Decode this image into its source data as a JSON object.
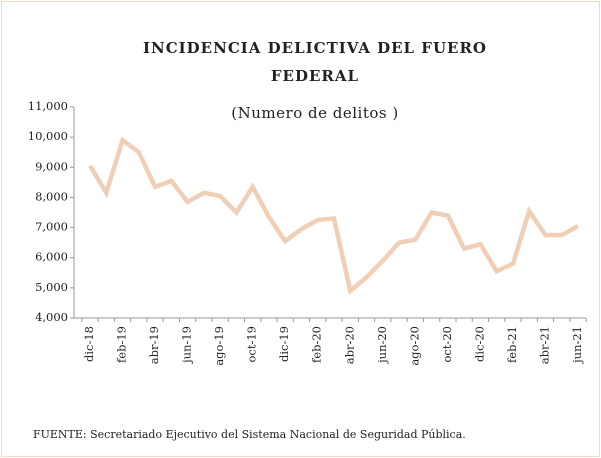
{
  "chart_data": {
    "type": "line",
    "title": "INCIDENCIA DELICTIVA DEL FUERO FEDERAL",
    "subtitle": "(Numero de delitos )",
    "source": "FUENTE: Secretariado Ejecutivo del Sistema Nacional de Seguridad Pública.",
    "categories": [
      "dic-18",
      null,
      "feb-19",
      null,
      "abr-19",
      null,
      "jun-19",
      null,
      "ago-19",
      null,
      "oct-19",
      null,
      "dic-19",
      null,
      "feb-20",
      null,
      "abr-20",
      null,
      "jun-20",
      null,
      "ago-20",
      null,
      "oct-20",
      null,
      "dic-20",
      null,
      "feb-21",
      null,
      "abr-21",
      null,
      "jun-21"
    ],
    "series": [
      {
        "name": "Incidencia delictiva",
        "color": "#f0cfb6",
        "values": [
          9050,
          8150,
          9900,
          9500,
          8350,
          8550,
          7850,
          8150,
          8050,
          7500,
          8350,
          7350,
          6550,
          6950,
          7250,
          7300,
          4900,
          5350,
          5900,
          6500,
          6600,
          7500,
          7400,
          6300,
          6450,
          5550,
          5800,
          7550,
          6750,
          6750,
          7050
        ]
      }
    ],
    "ylim": [
      4000,
      11000
    ],
    "yticks": [
      {
        "value": 4000,
        "label": "4,000"
      },
      {
        "value": 5000,
        "label": "5,000"
      },
      {
        "value": 6000,
        "label": "6,000"
      },
      {
        "value": 7000,
        "label": "7,000"
      },
      {
        "value": 8000,
        "label": "8,000"
      },
      {
        "value": 9000,
        "label": "9,000"
      },
      {
        "value": 10000,
        "label": "10,000"
      },
      {
        "value": 11000,
        "label": "11,000"
      }
    ]
  }
}
